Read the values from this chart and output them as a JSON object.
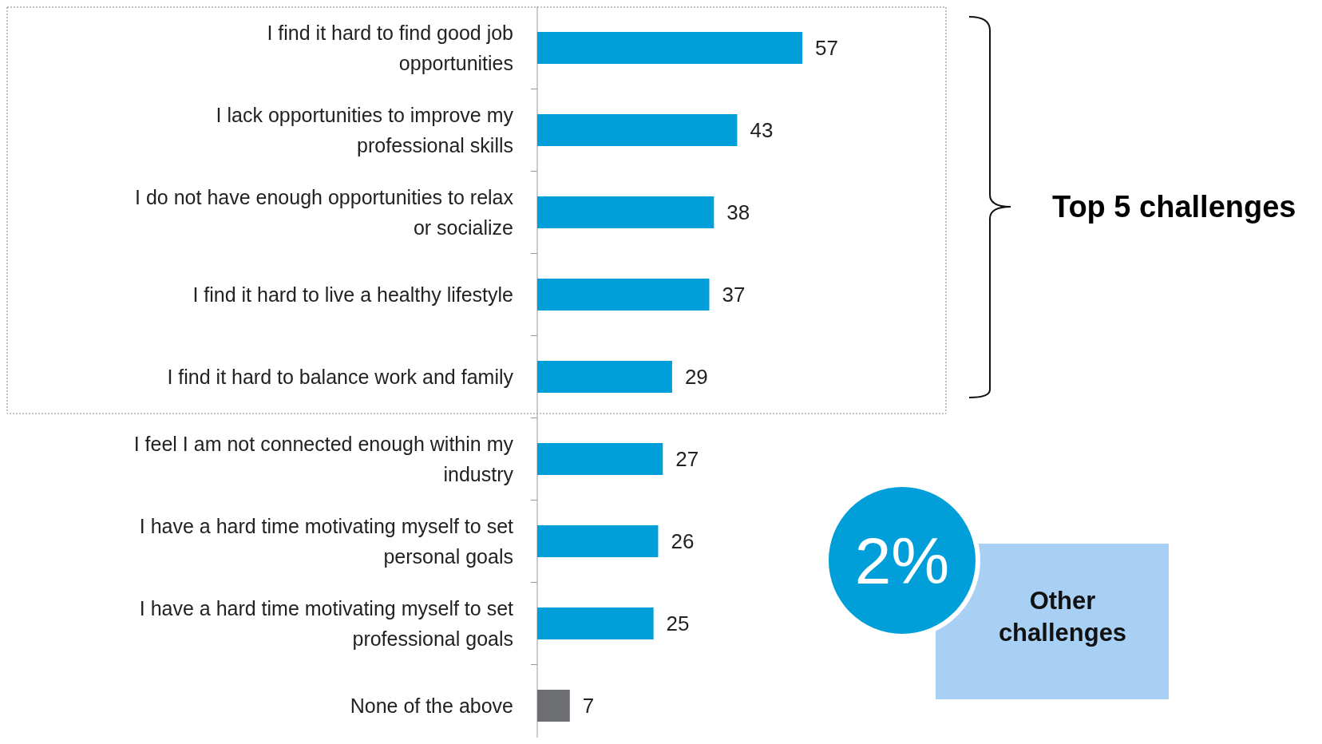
{
  "chart_data": {
    "type": "bar",
    "orientation": "horizontal",
    "categories": [
      "I find it hard to find good job opportunities",
      "I lack opportunities to improve my professional skills",
      "I do not have enough opportunities to relax or socialize",
      "I find it hard to live a healthy lifestyle",
      "I find it hard to balance work and family",
      "I feel I am not connected enough within my industry",
      "I have a hard time motivating myself to set personal goals",
      "I have a hard time motivating myself to set professional goals",
      "None of the above"
    ],
    "values": [
      57,
      43,
      38,
      37,
      29,
      27,
      26,
      25,
      7
    ],
    "colors": [
      "#009fda",
      "#009fda",
      "#009fda",
      "#009fda",
      "#009fda",
      "#009fda",
      "#009fda",
      "#009fda",
      "#6d6e71"
    ],
    "data_labels": true,
    "annotations": [
      "Top 5 challenges",
      "2%",
      "Other challenges"
    ]
  }
}
